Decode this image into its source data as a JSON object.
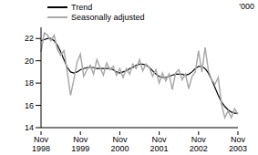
{
  "chart_data": {
    "type": "line",
    "y_label": "'000",
    "legend": "upper left",
    "grid": false,
    "categories": [
      "Nov 1998",
      null,
      null,
      null,
      null,
      null,
      null,
      null,
      null,
      null,
      null,
      null,
      "Nov 1999",
      null,
      null,
      null,
      null,
      null,
      null,
      null,
      null,
      null,
      null,
      null,
      "Nov 2000",
      null,
      null,
      null,
      null,
      null,
      null,
      null,
      null,
      null,
      null,
      null,
      "Nov 2001",
      null,
      null,
      null,
      null,
      null,
      null,
      null,
      null,
      null,
      null,
      null,
      "Nov 2002",
      null,
      null,
      null,
      null,
      null,
      null,
      null,
      null,
      null,
      null,
      null,
      "Nov 2003"
    ],
    "series": [
      {
        "name": "Trend",
        "color": "#000000",
        "values": [
          21.8,
          21.9,
          22.0,
          22.0,
          21.8,
          21.4,
          20.8,
          20.1,
          19.4,
          19.0,
          18.9,
          19.0,
          19.2,
          19.3,
          19.4,
          19.4,
          19.4,
          19.3,
          19.3,
          19.3,
          19.3,
          19.3,
          19.2,
          19.0,
          18.9,
          19.0,
          19.1,
          19.3,
          19.4,
          19.6,
          19.7,
          19.7,
          19.6,
          19.4,
          19.1,
          18.8,
          18.6,
          18.5,
          18.5,
          18.6,
          18.7,
          18.8,
          18.8,
          18.8,
          18.7,
          18.8,
          19.0,
          19.3,
          19.5,
          19.5,
          19.3,
          18.9,
          18.3,
          17.6,
          16.9,
          16.3,
          15.9,
          15.6,
          15.4,
          15.3,
          15.3
        ]
      },
      {
        "name": "Seasonally adjusted",
        "color": "#aaaaaa",
        "values": [
          20.8,
          22.5,
          22.3,
          21.8,
          22.3,
          21.0,
          20.5,
          20.9,
          19.0,
          16.9,
          18.3,
          19.9,
          20.6,
          18.6,
          19.2,
          19.6,
          18.8,
          20.1,
          19.4,
          18.7,
          19.8,
          19.2,
          19.5,
          18.7,
          19.3,
          18.5,
          19.3,
          18.8,
          19.7,
          19.3,
          20.1,
          19.1,
          19.7,
          19.4,
          18.6,
          19.2,
          18.0,
          18.9,
          18.2,
          18.8,
          17.4,
          18.9,
          19.2,
          18.3,
          18.8,
          17.5,
          18.6,
          19.0,
          20.9,
          19.0,
          21.2,
          19.1,
          18.3,
          17.9,
          18.5,
          16.1,
          14.9,
          15.5,
          14.9,
          15.7,
          15.2
        ]
      }
    ],
    "ylim": [
      14,
      23
    ],
    "yticks": [
      14,
      16,
      18,
      20,
      22
    ]
  }
}
